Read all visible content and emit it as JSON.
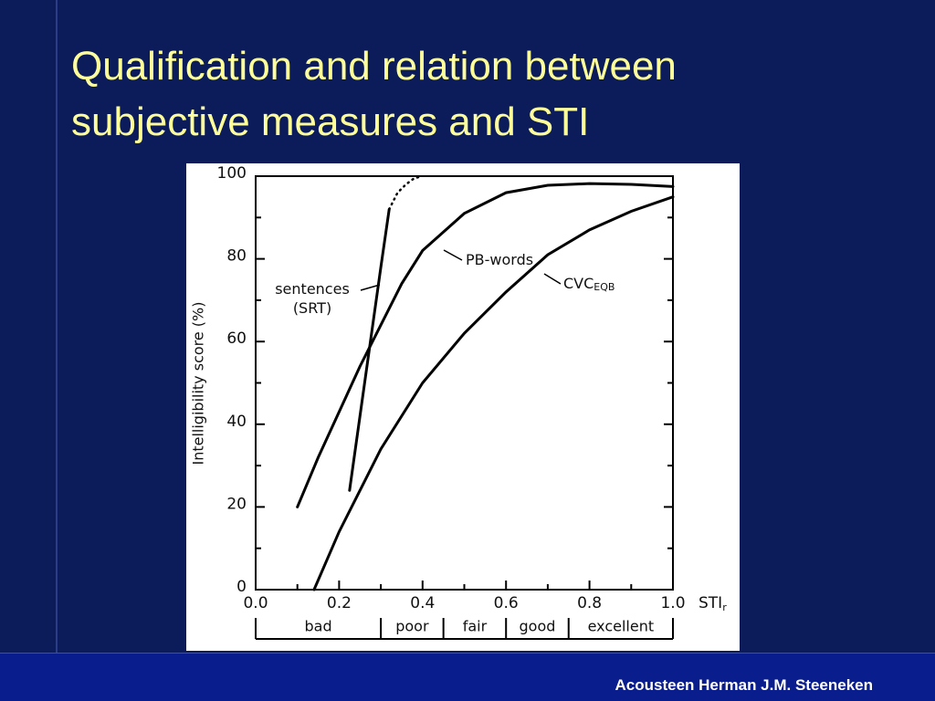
{
  "title": "Qualification and relation between subjective measures and STI",
  "footer": "Acousteen Herman J.M. Steeneken",
  "chart_data": {
    "type": "line",
    "xlabel": "STI",
    "xlabel_subscript": "r",
    "ylabel": "Intelligibility score (%)",
    "xlim": [
      0,
      1
    ],
    "ylim": [
      0,
      100
    ],
    "xticks": [
      {
        "value": 0,
        "label": "0.0"
      },
      0.2,
      0.4,
      0.6,
      0.8,
      {
        "value": 1,
        "label": "1.0"
      }
    ],
    "xticks_minor": [
      0.1,
      0.3,
      0.5,
      0.7,
      0.9
    ],
    "yticks": [
      0,
      20,
      40,
      60,
      80,
      100
    ],
    "yticks_minor": [
      10,
      30,
      50,
      70,
      90
    ],
    "series": [
      {
        "name": "sentences (SRT)",
        "color": "#000000",
        "dotted_from": 4,
        "x": [
          0.225,
          0.25,
          0.275,
          0.3,
          0.32,
          0.34,
          0.36,
          0.38,
          0.4
        ],
        "values": [
          24,
          42,
          60,
          78,
          92,
          96,
          98,
          99.5,
          100
        ]
      },
      {
        "name": "PB-words",
        "color": "#000000",
        "x": [
          0.1,
          0.15,
          0.2,
          0.25,
          0.3,
          0.35,
          0.4,
          0.5,
          0.6,
          0.7,
          0.8,
          0.9,
          1.0
        ],
        "values": [
          20,
          32,
          43,
          54,
          64,
          74,
          82,
          91,
          96,
          97.8,
          98.2,
          98,
          97.5
        ]
      },
      {
        "name": "CVC",
        "name_subscript": "EQB",
        "color": "#000000",
        "x": [
          0.14,
          0.2,
          0.3,
          0.4,
          0.5,
          0.6,
          0.7,
          0.8,
          0.9,
          1.0
        ],
        "values": [
          0,
          14,
          34,
          50,
          62,
          72,
          81,
          87,
          91.5,
          95
        ]
      }
    ],
    "bands": {
      "labels": [
        "bad",
        "poor",
        "fair",
        "good",
        "excellent"
      ],
      "edges": [
        0,
        0.3,
        0.45,
        0.6,
        0.75,
        1.0
      ]
    }
  }
}
